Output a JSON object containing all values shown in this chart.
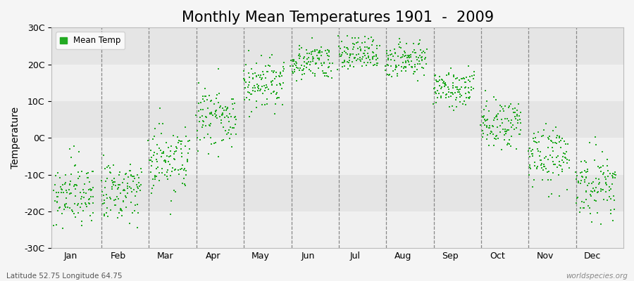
{
  "title": "Monthly Mean Temperatures 1901  -  2009",
  "ylabel": "Temperature",
  "ylim": [
    -30,
    30
  ],
  "yticks": [
    -30,
    -20,
    -10,
    0,
    10,
    20,
    30
  ],
  "ytick_labels": [
    "-30C",
    "-20C",
    "-10C",
    "0C",
    "10C",
    "20C",
    "30C"
  ],
  "months": [
    "Jan",
    "Feb",
    "Mar",
    "Apr",
    "May",
    "Jun",
    "Jul",
    "Aug",
    "Sep",
    "Oct",
    "Nov",
    "Dec"
  ],
  "dot_color": "#22aa22",
  "dot_size": 3,
  "legend_label": "Mean Temp",
  "bg_color": "#f5f5f5",
  "band_light": "#f0f0f0",
  "band_dark": "#e5e5e5",
  "vline_color": "#888888",
  "title_fontsize": 15,
  "axis_fontsize": 10,
  "tick_fontsize": 9,
  "footer_left": "Latitude 52.75 Longitude 64.75",
  "footer_right": "worldspecies.org",
  "monthly_means": [
    -15.5,
    -14.0,
    -6.5,
    5.5,
    14.5,
    20.5,
    22.5,
    20.5,
    13.0,
    3.5,
    -5.5,
    -12.5
  ],
  "monthly_stds": [
    4.5,
    4.5,
    4.5,
    3.5,
    3.5,
    2.5,
    2.5,
    2.5,
    2.5,
    3.5,
    4.0,
    4.5
  ],
  "num_years": 109,
  "random_seed": 17
}
